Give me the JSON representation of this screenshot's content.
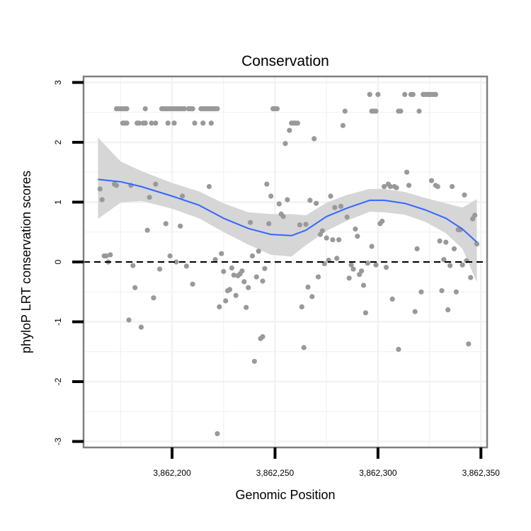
{
  "chart_data": {
    "type": "scatter",
    "title": "Conservation",
    "xlabel": "Genomic Position",
    "ylabel": "phyloP LRT conservation scores",
    "xlim": [
      3862157,
      3862353
    ],
    "ylim": [
      -3.1,
      3.1
    ],
    "x_ticks": [
      3862200,
      3862250,
      3862300,
      3862350
    ],
    "x_tick_labels": [
      "3,862,200",
      "3,862,250",
      "3,862,300",
      "3,862,350"
    ],
    "y_ticks": [
      3,
      2,
      1,
      0,
      -1,
      -2,
      -3
    ],
    "y_tick_labels": [
      "3",
      "2",
      "1",
      "0",
      "-1",
      "-2",
      "-3"
    ],
    "reference_line": {
      "y": 0,
      "style": "dashed"
    },
    "colors": {
      "points": "#999999",
      "smooth_line": "#3366ff",
      "ribbon": "#d6d6d6",
      "grid": "#f2f2f2",
      "border": "#808080"
    },
    "points": [
      {
        "x": 3862165,
        "y": 1.22
      },
      {
        "x": 3862166,
        "y": 1.04
      },
      {
        "x": 3862167,
        "y": 0.1
      },
      {
        "x": 3862168,
        "y": 0.1
      },
      {
        "x": 3862169,
        "y": 0.0
      },
      {
        "x": 3862170,
        "y": 0.12
      },
      {
        "x": 3862172,
        "y": 1.3
      },
      {
        "x": 3862173,
        "y": 1.28
      },
      {
        "x": 3862173,
        "y": 2.56
      },
      {
        "x": 3862174,
        "y": 2.56
      },
      {
        "x": 3862175,
        "y": 2.56
      },
      {
        "x": 3862176,
        "y": 2.56
      },
      {
        "x": 3862177,
        "y": 2.56
      },
      {
        "x": 3862178,
        "y": 2.56
      },
      {
        "x": 3862176,
        "y": 2.32
      },
      {
        "x": 3862177,
        "y": 2.32
      },
      {
        "x": 3862178,
        "y": 2.32
      },
      {
        "x": 3862179,
        "y": -0.97
      },
      {
        "x": 3862180,
        "y": 1.28
      },
      {
        "x": 3862181,
        "y": -0.06
      },
      {
        "x": 3862182,
        "y": -0.43
      },
      {
        "x": 3862183,
        "y": 2.32
      },
      {
        "x": 3862184,
        "y": 2.32
      },
      {
        "x": 3862185,
        "y": -1.09
      },
      {
        "x": 3862186,
        "y": 2.32
      },
      {
        "x": 3862187,
        "y": 2.32
      },
      {
        "x": 3862187,
        "y": 2.56
      },
      {
        "x": 3862188,
        "y": 0.53
      },
      {
        "x": 3862189,
        "y": 1.08
      },
      {
        "x": 3862190,
        "y": 2.32
      },
      {
        "x": 3862191,
        "y": -0.6
      },
      {
        "x": 3862192,
        "y": 1.3
      },
      {
        "x": 3862192,
        "y": 2.32
      },
      {
        "x": 3862194,
        "y": -0.12
      },
      {
        "x": 3862195,
        "y": 2.56
      },
      {
        "x": 3862196,
        "y": 2.56
      },
      {
        "x": 3862197,
        "y": 2.56
      },
      {
        "x": 3862198,
        "y": 2.56
      },
      {
        "x": 3862199,
        "y": 2.56
      },
      {
        "x": 3862200,
        "y": 2.56
      },
      {
        "x": 3862201,
        "y": 2.56
      },
      {
        "x": 3862202,
        "y": 2.56
      },
      {
        "x": 3862203,
        "y": 2.56
      },
      {
        "x": 3862204,
        "y": 2.56
      },
      {
        "x": 3862205,
        "y": 2.56
      },
      {
        "x": 3862206,
        "y": 2.56
      },
      {
        "x": 3862208,
        "y": 2.56
      },
      {
        "x": 3862209,
        "y": 2.56
      },
      {
        "x": 3862210,
        "y": 2.56
      },
      {
        "x": 3862214,
        "y": 2.56
      },
      {
        "x": 3862215,
        "y": 2.56
      },
      {
        "x": 3862216,
        "y": 2.56
      },
      {
        "x": 3862217,
        "y": 2.56
      },
      {
        "x": 3862218,
        "y": 2.56
      },
      {
        "x": 3862219,
        "y": 2.56
      },
      {
        "x": 3862220,
        "y": 2.56
      },
      {
        "x": 3862221,
        "y": 2.56
      },
      {
        "x": 3862222,
        "y": 2.56
      },
      {
        "x": 3862197,
        "y": 0.64
      },
      {
        "x": 3862198,
        "y": 2.32
      },
      {
        "x": 3862199,
        "y": 0.1
      },
      {
        "x": 3862201,
        "y": 2.32
      },
      {
        "x": 3862202,
        "y": 0.0
      },
      {
        "x": 3862204,
        "y": 0.6
      },
      {
        "x": 3862205,
        "y": 1.1
      },
      {
        "x": 3862207,
        "y": -0.07
      },
      {
        "x": 3862210,
        "y": -0.37
      },
      {
        "x": 3862211,
        "y": 2.32
      },
      {
        "x": 3862215,
        "y": 2.32
      },
      {
        "x": 3862218,
        "y": 1.26
      },
      {
        "x": 3862219,
        "y": 2.32
      },
      {
        "x": 3862221,
        "y": 0.04
      },
      {
        "x": 3862222,
        "y": -2.87
      },
      {
        "x": 3862223,
        "y": -0.75
      },
      {
        "x": 3862224,
        "y": 0.14
      },
      {
        "x": 3862225,
        "y": -0.16
      },
      {
        "x": 3862226,
        "y": -0.65
      },
      {
        "x": 3862227,
        "y": -0.48
      },
      {
        "x": 3862228,
        "y": -0.46
      },
      {
        "x": 3862229,
        "y": -0.1
      },
      {
        "x": 3862230,
        "y": -0.22
      },
      {
        "x": 3862231,
        "y": -0.56
      },
      {
        "x": 3862232,
        "y": -0.23
      },
      {
        "x": 3862233,
        "y": -0.2
      },
      {
        "x": 3862234,
        "y": -0.15
      },
      {
        "x": 3862235,
        "y": -0.33
      },
      {
        "x": 3862236,
        "y": -0.76
      },
      {
        "x": 3862237,
        "y": -0.43
      },
      {
        "x": 3862238,
        "y": 0.66
      },
      {
        "x": 3862239,
        "y": 0.1
      },
      {
        "x": 3862240,
        "y": -1.66
      },
      {
        "x": 3862241,
        "y": -0.25
      },
      {
        "x": 3862242,
        "y": 0.18
      },
      {
        "x": 3862243,
        "y": -1.28
      },
      {
        "x": 3862244,
        "y": -1.25
      },
      {
        "x": 3862244,
        "y": -0.32
      },
      {
        "x": 3862245,
        "y": -0.11
      },
      {
        "x": 3862246,
        "y": 1.3
      },
      {
        "x": 3862247,
        "y": 0.64
      },
      {
        "x": 3862248,
        "y": 1.1
      },
      {
        "x": 3862249,
        "y": 2.56
      },
      {
        "x": 3862250,
        "y": 2.56
      },
      {
        "x": 3862251,
        "y": 2.56
      },
      {
        "x": 3862252,
        "y": 0.97
      },
      {
        "x": 3862253,
        "y": 0.8
      },
      {
        "x": 3862254,
        "y": 0.76
      },
      {
        "x": 3862255,
        "y": 1.98
      },
      {
        "x": 3862256,
        "y": 1.04
      },
      {
        "x": 3862257,
        "y": 2.2
      },
      {
        "x": 3862258,
        "y": 2.32
      },
      {
        "x": 3862259,
        "y": 2.32
      },
      {
        "x": 3862260,
        "y": 2.32
      },
      {
        "x": 3862261,
        "y": 2.32
      },
      {
        "x": 3862262,
        "y": 0.62
      },
      {
        "x": 3862263,
        "y": -0.75
      },
      {
        "x": 3862264,
        "y": -1.43
      },
      {
        "x": 3862265,
        "y": 0.63
      },
      {
        "x": 3862266,
        "y": -0.42
      },
      {
        "x": 3862267,
        "y": 1.03
      },
      {
        "x": 3862268,
        "y": -0.58
      },
      {
        "x": 3862269,
        "y": 2.06
      },
      {
        "x": 3862270,
        "y": 0.98
      },
      {
        "x": 3862271,
        "y": -0.25
      },
      {
        "x": 3862272,
        "y": 0.46
      },
      {
        "x": 3862273,
        "y": 0.52
      },
      {
        "x": 3862274,
        "y": -0.03
      },
      {
        "x": 3862275,
        "y": 0.4
      },
      {
        "x": 3862276,
        "y": 0.03
      },
      {
        "x": 3862277,
        "y": 1.1
      },
      {
        "x": 3862278,
        "y": 0.37
      },
      {
        "x": 3862279,
        "y": 0.91
      },
      {
        "x": 3862280,
        "y": 0.06
      },
      {
        "x": 3862281,
        "y": 0.37
      },
      {
        "x": 3862282,
        "y": 0.93
      },
      {
        "x": 3862283,
        "y": 2.28
      },
      {
        "x": 3862284,
        "y": 2.52
      },
      {
        "x": 3862285,
        "y": 0.75
      },
      {
        "x": 3862286,
        "y": -0.27
      },
      {
        "x": 3862287,
        "y": -0.05
      },
      {
        "x": 3862288,
        "y": -0.12
      },
      {
        "x": 3862289,
        "y": 0.55
      },
      {
        "x": 3862290,
        "y": 0.43
      },
      {
        "x": 3862291,
        "y": -0.21
      },
      {
        "x": 3862292,
        "y": -0.15
      },
      {
        "x": 3862293,
        "y": -0.39
      },
      {
        "x": 3862294,
        "y": -0.85
      },
      {
        "x": 3862295,
        "y": -0.02
      },
      {
        "x": 3862296,
        "y": 2.8
      },
      {
        "x": 3862297,
        "y": 2.52
      },
      {
        "x": 3862298,
        "y": 2.52
      },
      {
        "x": 3862299,
        "y": 2.52
      },
      {
        "x": 3862300,
        "y": 2.8
      },
      {
        "x": 3862297,
        "y": 0.26
      },
      {
        "x": 3862299,
        "y": -0.05
      },
      {
        "x": 3862301,
        "y": 0.64
      },
      {
        "x": 3862302,
        "y": 0.68
      },
      {
        "x": 3862303,
        "y": 1.26
      },
      {
        "x": 3862304,
        "y": -0.09
      },
      {
        "x": 3862305,
        "y": 1.3
      },
      {
        "x": 3862306,
        "y": 1.26
      },
      {
        "x": 3862307,
        "y": -0.62
      },
      {
        "x": 3862308,
        "y": 1.26
      },
      {
        "x": 3862309,
        "y": 1.24
      },
      {
        "x": 3862310,
        "y": 2.52
      },
      {
        "x": 3862311,
        "y": 2.52
      },
      {
        "x": 3862310,
        "y": -1.46
      },
      {
        "x": 3862313,
        "y": 2.8
      },
      {
        "x": 3862314,
        "y": 1.5
      },
      {
        "x": 3862315,
        "y": 1.28
      },
      {
        "x": 3862316,
        "y": 2.8
      },
      {
        "x": 3862317,
        "y": 2.8
      },
      {
        "x": 3862318,
        "y": -0.83
      },
      {
        "x": 3862319,
        "y": 0.22
      },
      {
        "x": 3862320,
        "y": 2.52
      },
      {
        "x": 3862321,
        "y": -0.5
      },
      {
        "x": 3862322,
        "y": 2.8
      },
      {
        "x": 3862323,
        "y": 2.8
      },
      {
        "x": 3862324,
        "y": 2.8
      },
      {
        "x": 3862325,
        "y": 2.8
      },
      {
        "x": 3862326,
        "y": 2.8
      },
      {
        "x": 3862327,
        "y": 2.8
      },
      {
        "x": 3862328,
        "y": 2.8
      },
      {
        "x": 3862326,
        "y": 1.36
      },
      {
        "x": 3862328,
        "y": 1.28
      },
      {
        "x": 3862329,
        "y": 1.26
      },
      {
        "x": 3862330,
        "y": 0.35
      },
      {
        "x": 3862331,
        "y": -0.48
      },
      {
        "x": 3862332,
        "y": 0.04
      },
      {
        "x": 3862333,
        "y": 0.33
      },
      {
        "x": 3862334,
        "y": -0.8
      },
      {
        "x": 3862335,
        "y": -0.06
      },
      {
        "x": 3862336,
        "y": 1.26
      },
      {
        "x": 3862337,
        "y": 0.22
      },
      {
        "x": 3862338,
        "y": -0.5
      },
      {
        "x": 3862339,
        "y": 0.54
      },
      {
        "x": 3862340,
        "y": 0.54
      },
      {
        "x": 3862341,
        "y": -0.05
      },
      {
        "x": 3862342,
        "y": 1.12
      },
      {
        "x": 3862343,
        "y": 0.02
      },
      {
        "x": 3862344,
        "y": -1.37
      },
      {
        "x": 3862345,
        "y": -0.26
      },
      {
        "x": 3862346,
        "y": 0.72
      },
      {
        "x": 3862347,
        "y": 0.78
      },
      {
        "x": 3862348,
        "y": 0.3
      }
    ],
    "smooth": {
      "x": [
        3862164,
        3862175,
        3862185,
        3862200,
        3862213,
        3862225,
        3862237,
        3862248,
        3862258,
        3862265,
        3862275,
        3862285,
        3862296,
        3862303,
        3862313,
        3862323,
        3862333,
        3862341,
        3862348
      ],
      "y": [
        1.38,
        1.34,
        1.26,
        1.1,
        0.95,
        0.73,
        0.56,
        0.46,
        0.44,
        0.53,
        0.76,
        0.9,
        1.03,
        1.03,
        0.98,
        0.87,
        0.73,
        0.55,
        0.33
      ],
      "lower": [
        0.72,
        0.99,
        1.02,
        0.89,
        0.73,
        0.5,
        0.29,
        0.12,
        0.09,
        0.28,
        0.52,
        0.69,
        0.84,
        0.83,
        0.79,
        0.67,
        0.48,
        0.22,
        -0.34
      ],
      "upper": [
        2.08,
        1.68,
        1.52,
        1.32,
        1.18,
        0.98,
        0.83,
        0.8,
        0.8,
        0.78,
        0.99,
        1.12,
        1.22,
        1.22,
        1.17,
        1.07,
        0.98,
        0.91,
        1.05
      ]
    }
  }
}
